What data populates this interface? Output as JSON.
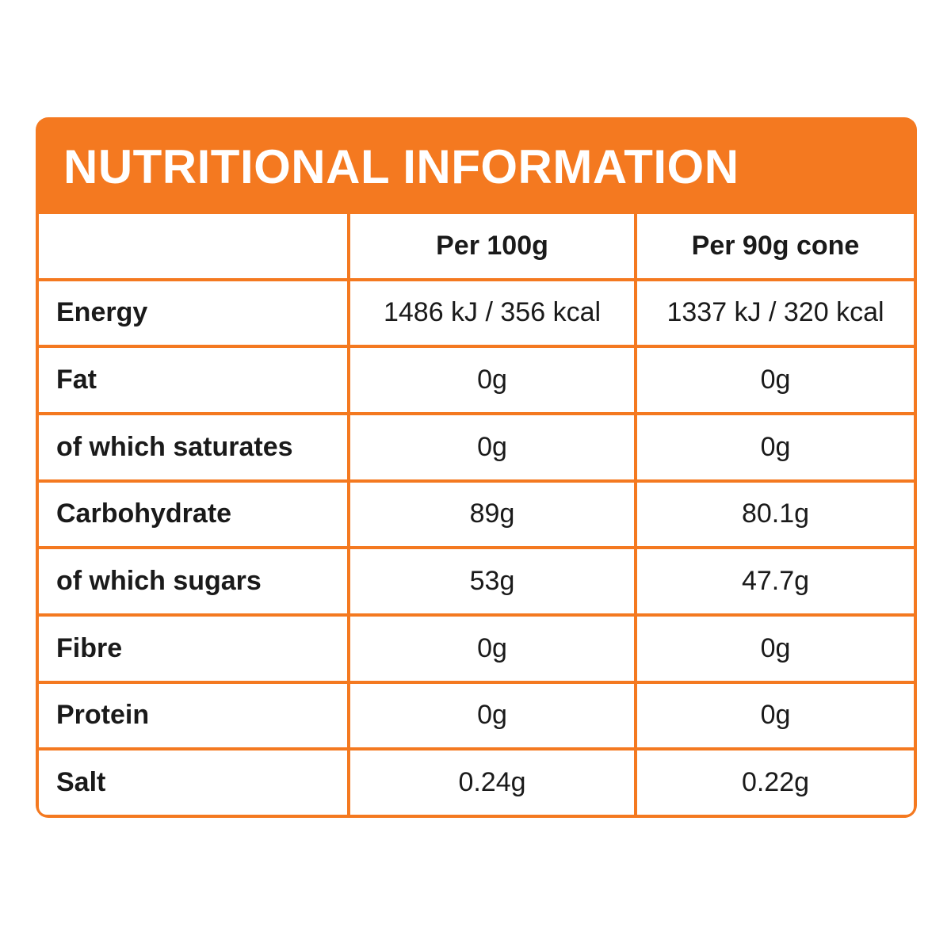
{
  "header": {
    "title": "NUTRITIONAL INFORMATION"
  },
  "table": {
    "columns": [
      "Per 100g",
      "Per 90g cone"
    ],
    "rows": [
      [
        "Energy",
        "1486 kJ / 356 kcal",
        "1337 kJ / 320 kcal"
      ],
      [
        "Fat",
        "0g",
        "0g"
      ],
      [
        "of which saturates",
        "0g",
        "0g"
      ],
      [
        "Carbohydrate",
        "89g",
        "80.1g"
      ],
      [
        "of which sugars",
        "53g",
        "47.7g"
      ],
      [
        "Fibre",
        "0g",
        "0g"
      ],
      [
        "Protein",
        "0g",
        "0g"
      ],
      [
        "Salt",
        "0.24g",
        "0.22g"
      ]
    ]
  }
}
